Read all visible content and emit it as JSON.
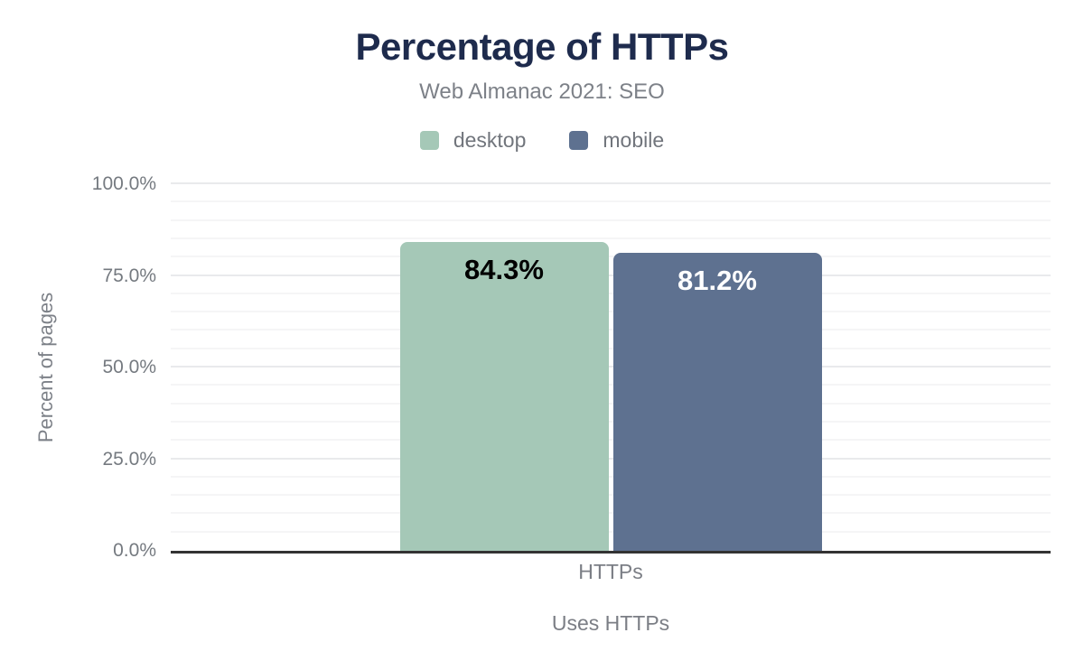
{
  "chart_data": {
    "type": "bar",
    "title": "Percentage of HTTPs",
    "subtitle": "Web Almanac 2021: SEO",
    "categories": [
      "HTTPs"
    ],
    "series": [
      {
        "name": "desktop",
        "color": "#a5c8b7",
        "values": [
          84.3
        ],
        "data_label": "84.3%",
        "label_color": "#000000"
      },
      {
        "name": "mobile",
        "color": "#5e7190",
        "values": [
          81.2
        ],
        "data_label": "81.2%",
        "label_color": "#ffffff"
      }
    ],
    "xlabel": "Uses HTTPs",
    "ylabel": "Percent of pages",
    "ylim": [
      0,
      100
    ],
    "yticks": [
      {
        "value": 0,
        "label": "0.0%"
      },
      {
        "value": 25,
        "label": "25.0%"
      },
      {
        "value": 50,
        "label": "50.0%"
      },
      {
        "value": 75,
        "label": "75.0%"
      },
      {
        "value": 100,
        "label": "100.0%"
      }
    ],
    "minor_gridline_step": 5,
    "grid": true,
    "legend_position": "top",
    "colors": {
      "title": "#1e2b4d",
      "axis_line": "#333333",
      "text_gray": "#7d8188",
      "major_gridline": "#e9eaec",
      "minor_gridline": "#f5f5f6"
    }
  }
}
